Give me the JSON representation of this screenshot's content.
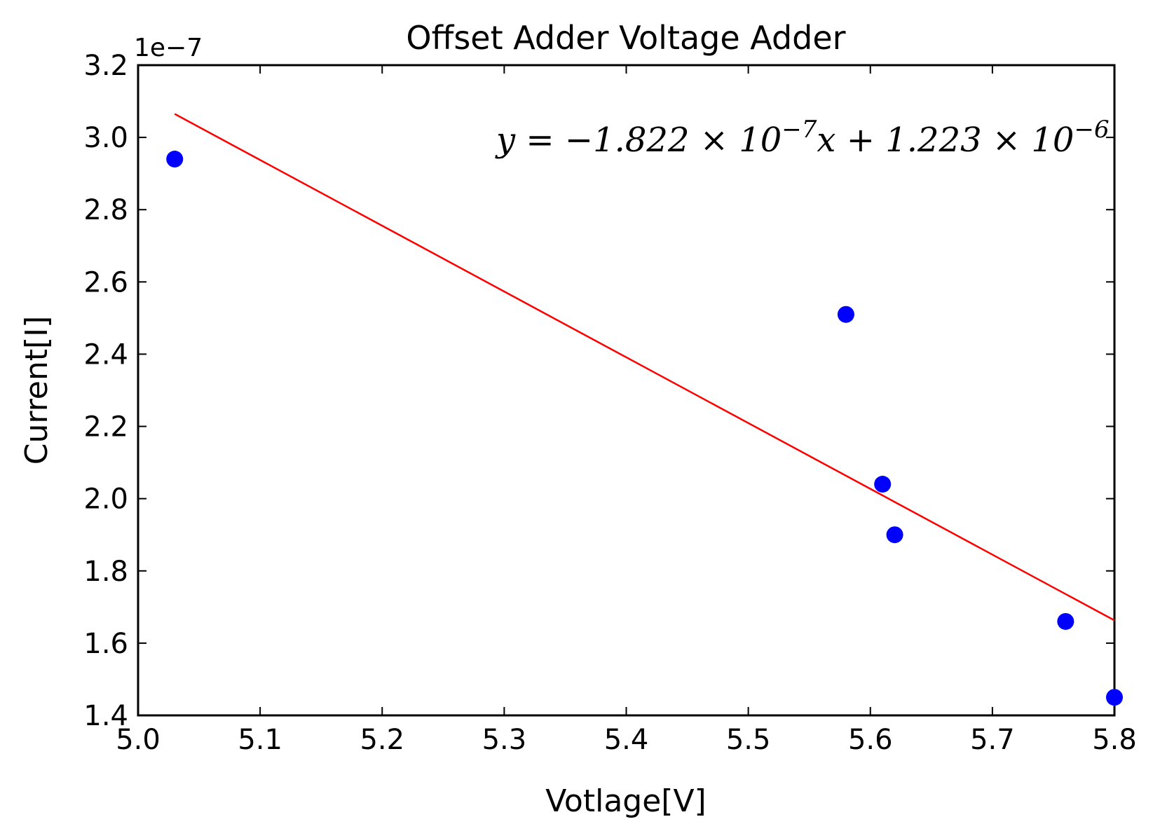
{
  "chart_data": {
    "type": "scatter",
    "title": "Offset Adder Voltage Adder",
    "xlabel": "Votlage[V]",
    "ylabel": "Current[I]",
    "y_scale_note": "1e−7",
    "xlim": [
      5.0,
      5.8
    ],
    "ylim": [
      1.4,
      3.2
    ],
    "x_ticks": [
      "5.0",
      "5.1",
      "5.2",
      "5.3",
      "5.4",
      "5.5",
      "5.6",
      "5.7",
      "5.8"
    ],
    "y_ticks": [
      "1.4",
      "1.6",
      "1.8",
      "2.0",
      "2.2",
      "2.4",
      "2.6",
      "2.8",
      "3.0",
      "3.2"
    ],
    "grid": false,
    "series": [
      {
        "marker_color": "#0000ff",
        "points": [
          {
            "x": 5.03,
            "y": 2.94
          },
          {
            "x": 5.58,
            "y": 2.51
          },
          {
            "x": 5.61,
            "y": 2.04
          },
          {
            "x": 5.62,
            "y": 1.9
          },
          {
            "x": 5.76,
            "y": 1.66
          },
          {
            "x": 5.8,
            "y": 1.45
          }
        ]
      },
      {
        "type": "line",
        "line_color": "#ff0000",
        "points": [
          {
            "x": 5.03,
            "y": 3.065
          },
          {
            "x": 5.8,
            "y": 1.663
          }
        ]
      }
    ],
    "annotation": {
      "y_part": "y = −1.822 × 10",
      "exp1": "−7",
      "x_part": "x + 1.223 × 10",
      "exp2": "−6"
    }
  }
}
